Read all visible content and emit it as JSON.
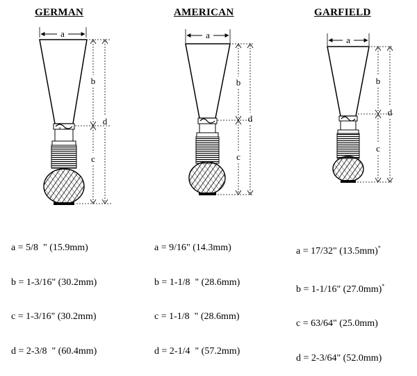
{
  "reeds": [
    {
      "id": "german",
      "title": "GERMAN",
      "labels": {
        "a": "a",
        "b": "b",
        "c": "c",
        "d": "d"
      },
      "measurements": [
        {
          "label": "a",
          "value": "5/8  \" (15.9mm)",
          "mark": ""
        },
        {
          "label": "b",
          "value": "1-3/16\" (30.2mm)",
          "mark": ""
        },
        {
          "label": "c",
          "value": "1-3/16\" (30.2mm)",
          "mark": ""
        },
        {
          "label": "d",
          "value": "2-3/8  \" (60.4mm)",
          "mark": ""
        }
      ]
    },
    {
      "id": "american",
      "title": "AMERICAN",
      "labels": {
        "a": "a",
        "b": "b",
        "c": "c",
        "d": "d"
      },
      "measurements": [
        {
          "label": "a",
          "value": "9/16\" (14.3mm)",
          "mark": ""
        },
        {
          "label": "b",
          "value": "1-1/8  \" (28.6mm)",
          "mark": ""
        },
        {
          "label": "c",
          "value": "1-1/8  \" (28.6mm)",
          "mark": ""
        },
        {
          "label": "d",
          "value": "2-1/4  \" (57.2mm)",
          "mark": ""
        }
      ]
    },
    {
      "id": "garfield",
      "title": "GARFIELD",
      "labels": {
        "a": "a",
        "b": "b",
        "c": "c",
        "d": "d"
      },
      "measurements": [
        {
          "label": "a",
          "value": "17/32\" (13.5mm)",
          "mark": "*"
        },
        {
          "label": "b",
          "value": "1-1/16\" (27.0mm)",
          "mark": "*"
        },
        {
          "label": "c",
          "value": "63/64\" (25.0mm)",
          "mark": ""
        },
        {
          "label": "d",
          "value": "2-3/64\" (52.0mm)",
          "mark": ""
        }
      ]
    }
  ]
}
